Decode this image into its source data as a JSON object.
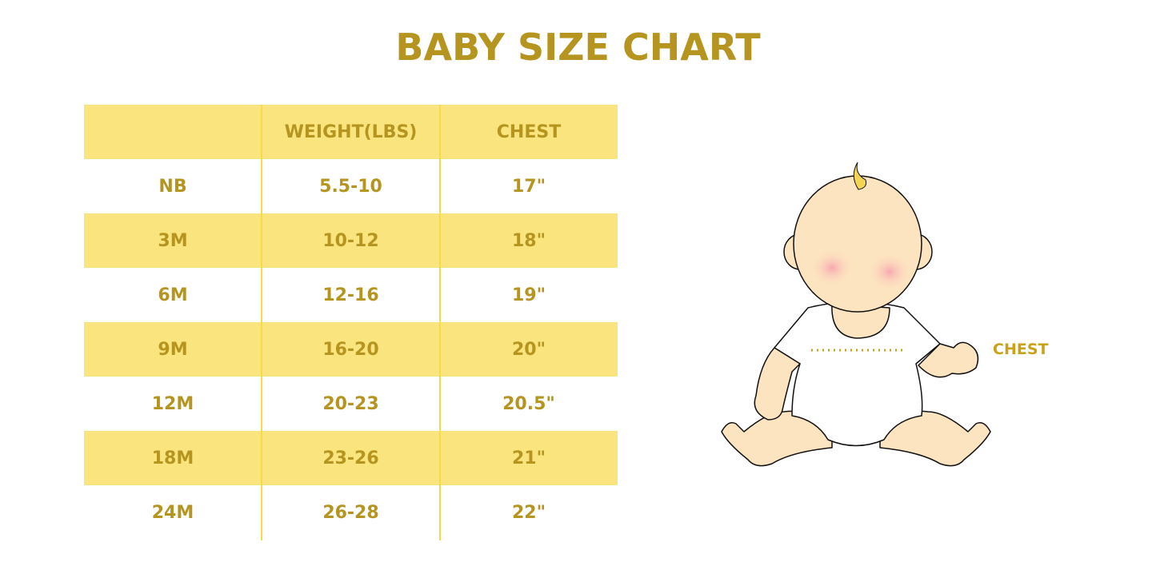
{
  "title": "BABY SIZE CHART",
  "table": {
    "headers": [
      "",
      "WEIGHT(LBS)",
      "CHEST"
    ],
    "rows": [
      [
        "NB",
        "5.5-10",
        "17\""
      ],
      [
        "3M",
        "10-12",
        "18\""
      ],
      [
        "6M",
        "12-16",
        "19\""
      ],
      [
        "9M",
        "16-20",
        "20\""
      ],
      [
        "12M",
        "20-23",
        "20.5\""
      ],
      [
        "18M",
        "23-26",
        "21\""
      ],
      [
        "24M",
        "26-28",
        "22\""
      ]
    ]
  },
  "illustration": {
    "chest_label": "CHEST"
  },
  "colors": {
    "text": "#b5941f",
    "row_fill": "#fae47d",
    "divider": "#f8d94a"
  }
}
